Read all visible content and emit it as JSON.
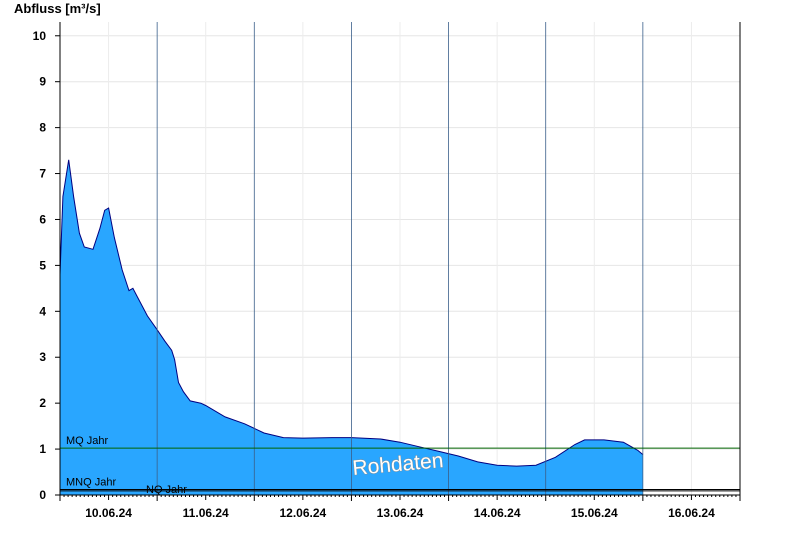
{
  "chart_data": {
    "type": "area",
    "ylabel": "Abfluss [m³/s]",
    "ylim": [
      0,
      10.3
    ],
    "yticks": [
      "0",
      "1",
      "2",
      "3",
      "4",
      "5",
      "6",
      "7",
      "8",
      "9",
      "10"
    ],
    "xlabels": [
      "10.06.24",
      "11.06.24",
      "12.06.24",
      "13.06.24",
      "14.06.24",
      "15.06.24",
      "16.06.24"
    ],
    "x_days": [
      9.5,
      16.5
    ],
    "grid": true,
    "fill_color": "#29a6ff",
    "line_color": "#000080",
    "watermark": "Rohdaten",
    "series": [
      {
        "values": [
          [
            9.5,
            4.8
          ],
          [
            9.53,
            6.5
          ],
          [
            9.59,
            7.3
          ],
          [
            9.64,
            6.5
          ],
          [
            9.7,
            5.7
          ],
          [
            9.75,
            5.4
          ],
          [
            9.84,
            5.35
          ],
          [
            9.91,
            5.8
          ],
          [
            9.96,
            6.2
          ],
          [
            10.0,
            6.25
          ],
          [
            10.06,
            5.6
          ],
          [
            10.14,
            4.9
          ],
          [
            10.21,
            4.45
          ],
          [
            10.25,
            4.5
          ],
          [
            10.3,
            4.3
          ],
          [
            10.4,
            3.9
          ],
          [
            10.5,
            3.6
          ],
          [
            10.58,
            3.35
          ],
          [
            10.65,
            3.15
          ],
          [
            10.68,
            2.95
          ],
          [
            10.72,
            2.45
          ],
          [
            10.77,
            2.25
          ],
          [
            10.84,
            2.05
          ],
          [
            10.95,
            2.0
          ],
          [
            11.0,
            1.95
          ],
          [
            11.2,
            1.7
          ],
          [
            11.4,
            1.55
          ],
          [
            11.6,
            1.35
          ],
          [
            11.8,
            1.25
          ],
          [
            12.0,
            1.24
          ],
          [
            12.3,
            1.25
          ],
          [
            12.5,
            1.25
          ],
          [
            12.8,
            1.22
          ],
          [
            13.0,
            1.15
          ],
          [
            13.2,
            1.05
          ],
          [
            13.4,
            0.95
          ],
          [
            13.6,
            0.85
          ],
          [
            13.8,
            0.72
          ],
          [
            14.0,
            0.65
          ],
          [
            14.2,
            0.63
          ],
          [
            14.4,
            0.65
          ],
          [
            14.6,
            0.82
          ],
          [
            14.8,
            1.1
          ],
          [
            14.9,
            1.2
          ],
          [
            15.1,
            1.2
          ],
          [
            15.3,
            1.15
          ],
          [
            15.45,
            0.97
          ],
          [
            15.5,
            0.88
          ]
        ]
      }
    ],
    "reference_lines": [
      {
        "label": "MQ Jahr",
        "value": 1.02,
        "color": "#006400"
      },
      {
        "label": "MNQ Jahr",
        "value": 0.12,
        "color": "#000000"
      },
      {
        "label": "NQ Jahr",
        "value": 0.09,
        "color": "#000000"
      }
    ]
  }
}
